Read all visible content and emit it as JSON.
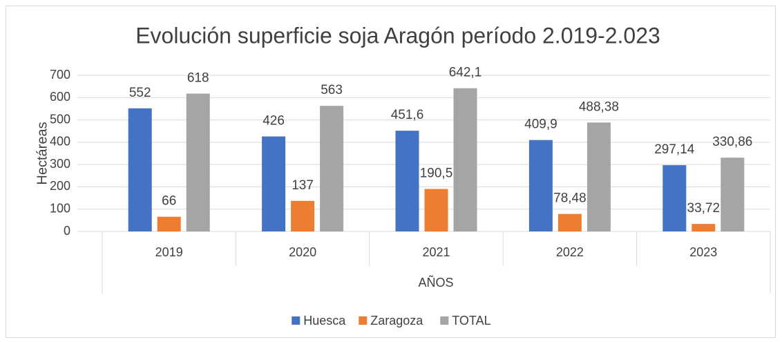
{
  "chart_data": {
    "type": "bar",
    "title": "Evolución superficie soja Aragón período 2.019-2.023",
    "x_label": "AÑOS",
    "y_label": "Hectáreas",
    "categories": [
      "2019",
      "2020",
      "2021",
      "2022",
      "2023"
    ],
    "series": [
      {
        "name": "Huesca",
        "color": "#4472c4",
        "values": [
          552,
          426,
          451.6,
          409.9,
          297.14
        ],
        "value_labels": [
          "552",
          "426",
          "451,6",
          "409,9",
          "297,14"
        ]
      },
      {
        "name": "Zaragoza",
        "color": "#ed7d31",
        "values": [
          66,
          137,
          190.5,
          78.48,
          33.72
        ],
        "value_labels": [
          "66",
          "137",
          "190,5",
          "78,48",
          "33,72"
        ]
      },
      {
        "name": "TOTAL",
        "color": "#a5a5a5",
        "values": [
          618,
          563,
          642.1,
          488.38,
          330.86
        ],
        "value_labels": [
          "618",
          "563",
          "642,1",
          "488,38",
          "330,86"
        ]
      }
    ],
    "ylim": [
      0,
      700
    ],
    "yticks": [
      0,
      100,
      200,
      300,
      400,
      500,
      600,
      700
    ],
    "grid": true,
    "legend": "bottom"
  }
}
